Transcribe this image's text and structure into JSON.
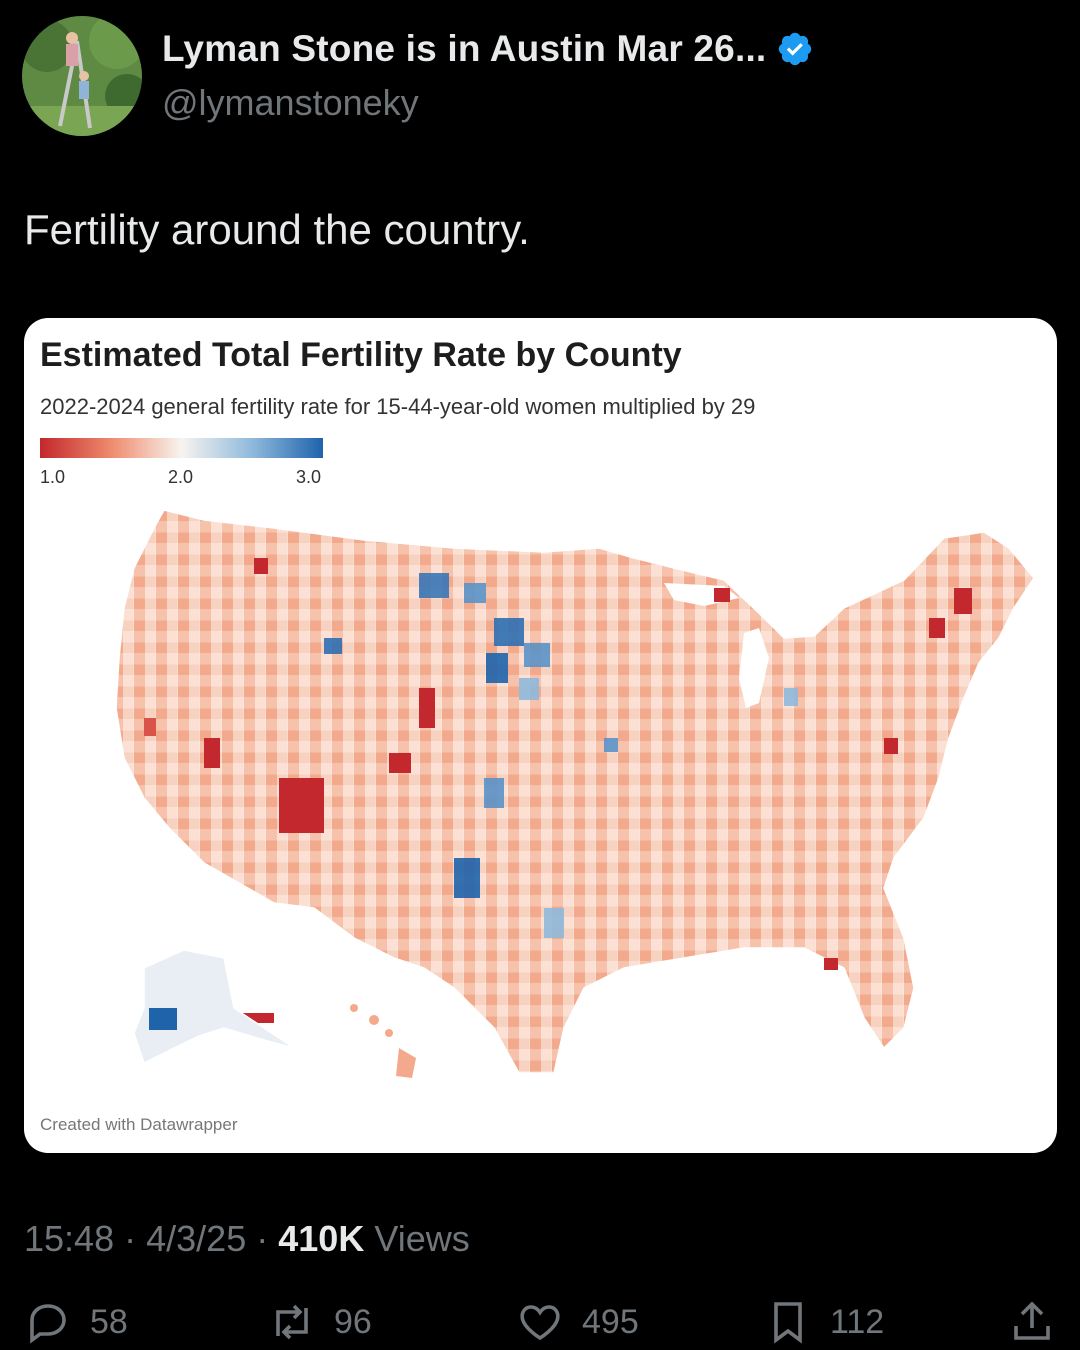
{
  "tweet": {
    "author_name": "Lyman Stone is in Austin Mar 26...",
    "handle": "@lymanstoneky",
    "text": "Fertility around the country.",
    "time": "15:48",
    "date": "4/3/25",
    "views_count": "410K",
    "views_label": "Views",
    "separator": "·"
  },
  "stats": {
    "replies": "58",
    "reposts": "96",
    "likes": "495",
    "bookmarks": "112"
  },
  "icons": [
    "verified-badge-icon",
    "reply-icon",
    "repost-icon",
    "like-icon",
    "bookmark-icon",
    "share-icon"
  ],
  "colors": {
    "background": "#000000",
    "primary_text": "#e7e9ea",
    "secondary_text": "#71767b",
    "verified_blue": "#1d9bf0",
    "scale_low": "#c2282d",
    "scale_mid": "#f7f4ef",
    "scale_high": "#1f63ab"
  },
  "chart_data": {
    "type": "choropleth map",
    "title": "Estimated Total Fertility Rate by County",
    "subtitle": "2022-2024 general fertility rate for 15-44-year-old women multiplied by 29",
    "legend": {
      "ticks": [
        "1.0",
        "2.0",
        "3.0"
      ],
      "range": [
        1.0,
        3.0
      ],
      "scale": "diverging red-white-blue"
    },
    "credit": "Created with Datawrapper"
  }
}
